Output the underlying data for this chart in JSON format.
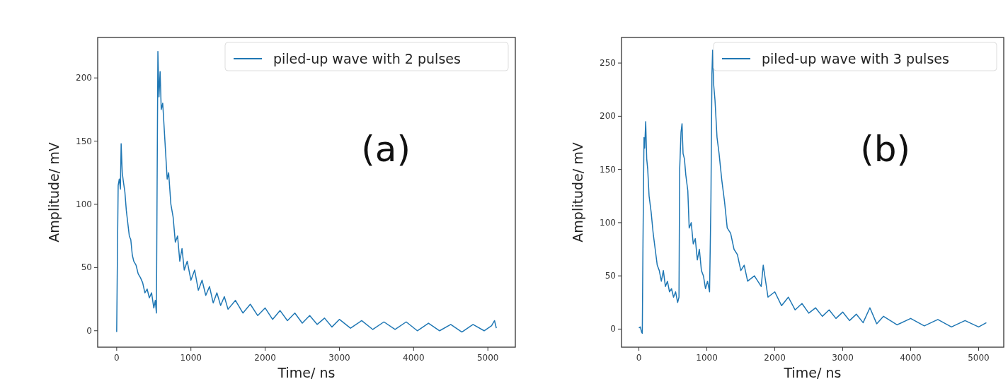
{
  "chart_data": [
    {
      "type": "line",
      "xlabel": "Time/ ns",
      "ylabel": "Amplitude/ mV",
      "annotations": [
        "(a)"
      ],
      "xlim": [
        -256,
        5370
      ],
      "ylim": [
        -13,
        232
      ],
      "xticks": [
        0,
        1000,
        2000,
        3000,
        4000,
        5000
      ],
      "yticks": [
        0,
        50,
        100,
        150,
        200
      ],
      "legend": "top right",
      "grid": false,
      "series": [
        {
          "name": "piled-up wave with 2 pulses",
          "color": "#1f77b4",
          "x": [
            0,
            10,
            20,
            35,
            50,
            60,
            75,
            90,
            110,
            130,
            150,
            170,
            190,
            210,
            230,
            260,
            290,
            320,
            350,
            380,
            410,
            440,
            470,
            500,
            520,
            535,
            545,
            555,
            570,
            585,
            600,
            620,
            650,
            680,
            700,
            730,
            760,
            790,
            820,
            850,
            880,
            910,
            950,
            1000,
            1050,
            1100,
            1150,
            1200,
            1250,
            1300,
            1350,
            1400,
            1450,
            1500,
            1600,
            1700,
            1800,
            1900,
            2000,
            2100,
            2200,
            2300,
            2400,
            2500,
            2600,
            2700,
            2800,
            2900,
            3000,
            3150,
            3300,
            3450,
            3600,
            3750,
            3900,
            4050,
            4200,
            4350,
            4500,
            4650,
            4800,
            4950,
            5050,
            5090,
            5114
          ],
          "values": [
            -1,
            60,
            115,
            120,
            112,
            148,
            125,
            118,
            110,
            95,
            85,
            75,
            72,
            60,
            55,
            52,
            45,
            42,
            38,
            30,
            33,
            26,
            30,
            18,
            24,
            14,
            120,
            221,
            185,
            205,
            175,
            180,
            150,
            120,
            125,
            100,
            90,
            70,
            75,
            55,
            65,
            48,
            55,
            40,
            48,
            32,
            40,
            28,
            35,
            22,
            30,
            20,
            27,
            17,
            24,
            14,
            21,
            12,
            18,
            9,
            16,
            8,
            14,
            6,
            12,
            5,
            10,
            3,
            9,
            2,
            8,
            1,
            7,
            1,
            7,
            0,
            6,
            0,
            5,
            -1,
            5,
            0,
            4,
            8,
            2
          ]
        }
      ]
    },
    {
      "type": "line",
      "xlabel": "Time/ ns",
      "ylabel": "Amplitude/ mV",
      "annotations": [
        "(b)"
      ],
      "xlim": [
        -256,
        5370
      ],
      "ylim": [
        -17,
        274
      ],
      "xticks": [
        0,
        1000,
        2000,
        3000,
        4000,
        5000
      ],
      "yticks": [
        0,
        50,
        100,
        150,
        200,
        250
      ],
      "legend": "top right",
      "grid": false,
      "series": [
        {
          "name": "piled-up wave with 3 pulses",
          "color": "#1f77b4",
          "x": [
            0,
            20,
            40,
            50,
            60,
            75,
            85,
            100,
            115,
            130,
            150,
            180,
            210,
            240,
            270,
            300,
            330,
            360,
            390,
            420,
            450,
            480,
            510,
            540,
            570,
            590,
            600,
            620,
            635,
            650,
            670,
            690,
            720,
            740,
            770,
            800,
            830,
            860,
            890,
            920,
            950,
            980,
            1010,
            1040,
            1060,
            1075,
            1085,
            1100,
            1120,
            1150,
            1180,
            1220,
            1260,
            1300,
            1350,
            1400,
            1450,
            1500,
            1550,
            1600,
            1700,
            1800,
            1830,
            1900,
            2000,
            2100,
            2200,
            2300,
            2400,
            2500,
            2600,
            2700,
            2800,
            2900,
            3000,
            3100,
            3200,
            3300,
            3400,
            3500,
            3600,
            3800,
            4000,
            4200,
            4400,
            4600,
            4800,
            5000,
            5114
          ],
          "values": [
            1,
            2,
            -3,
            -4,
            80,
            180,
            170,
            195,
            160,
            150,
            125,
            110,
            90,
            75,
            60,
            55,
            45,
            55,
            40,
            45,
            35,
            38,
            30,
            35,
            25,
            30,
            150,
            185,
            193,
            165,
            160,
            145,
            130,
            95,
            100,
            80,
            85,
            65,
            75,
            55,
            50,
            38,
            45,
            35,
            120,
            240,
            262,
            230,
            215,
            180,
            165,
            140,
            120,
            95,
            90,
            75,
            70,
            55,
            60,
            45,
            50,
            40,
            60,
            30,
            35,
            22,
            30,
            18,
            24,
            15,
            20,
            12,
            18,
            10,
            16,
            8,
            14,
            6,
            20,
            5,
            12,
            4,
            10,
            3,
            9,
            2,
            8,
            2,
            6
          ]
        }
      ]
    }
  ]
}
